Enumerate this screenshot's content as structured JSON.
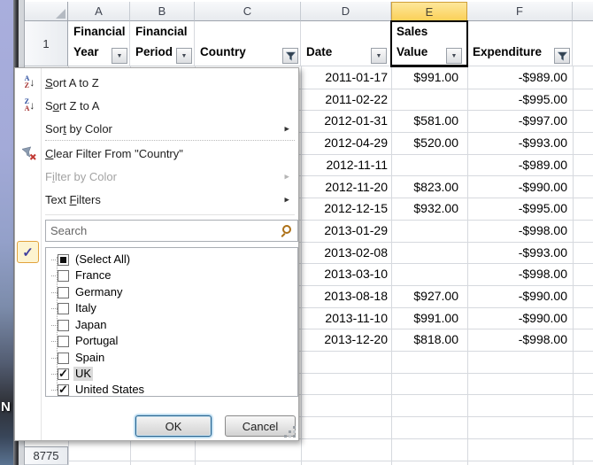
{
  "desktop": {
    "icon_text": "N"
  },
  "sheet": {
    "col_letters": [
      "A",
      "B",
      "C",
      "D",
      "E",
      "F"
    ],
    "selected_column": "E",
    "row1_number": "1",
    "bottom_row_number": "8775",
    "headers": {
      "a1": "Financial",
      "a2": "Year",
      "b1": "Financial",
      "b2": "Period",
      "c": "Country",
      "d": "Date",
      "e1": "Sales",
      "e2": "Value",
      "f": "Expenditure"
    },
    "rows": [
      {
        "date": "2011-01-17",
        "sales": "$991.00",
        "expenditure": "-$989.00"
      },
      {
        "date": "2011-02-22",
        "sales": "",
        "expenditure": "-$995.00"
      },
      {
        "date": "2012-01-31",
        "sales": "$581.00",
        "expenditure": "-$997.00"
      },
      {
        "date": "2012-04-29",
        "sales": "$520.00",
        "expenditure": "-$993.00"
      },
      {
        "date": "2012-11-11",
        "sales": "",
        "expenditure": "-$989.00"
      },
      {
        "date": "2012-11-20",
        "sales": "$823.00",
        "expenditure": "-$990.00"
      },
      {
        "date": "2012-12-15",
        "sales": "$932.00",
        "expenditure": "-$995.00"
      },
      {
        "date": "2013-01-29",
        "sales": "",
        "expenditure": "-$998.00"
      },
      {
        "date": "2013-02-08",
        "sales": "",
        "expenditure": "-$993.00"
      },
      {
        "date": "2013-03-10",
        "sales": "",
        "expenditure": "-$998.00"
      },
      {
        "date": "2013-08-18",
        "sales": "$927.00",
        "expenditure": "-$990.00"
      },
      {
        "date": "2013-11-10",
        "sales": "$991.00",
        "expenditure": "-$990.00"
      },
      {
        "date": "2013-12-20",
        "sales": "$818.00",
        "expenditure": "-$998.00"
      }
    ]
  },
  "menu": {
    "items": [
      {
        "pre": "",
        "key": "S",
        "post": "ort A to Z",
        "enabled": true,
        "submenu": false
      },
      {
        "pre": "S",
        "key": "o",
        "post": "rt Z to A",
        "enabled": true,
        "submenu": false
      },
      {
        "pre": "Sor",
        "key": "t",
        "post": " by Color",
        "enabled": true,
        "submenu": true
      },
      {
        "pre": "",
        "key": "C",
        "post": "lear Filter From \"Country\"",
        "enabled": true,
        "submenu": false
      },
      {
        "pre": "F",
        "key": "i",
        "post": "lter by Color",
        "enabled": false,
        "submenu": true
      },
      {
        "pre": "Text ",
        "key": "F",
        "post": "ilters",
        "enabled": true,
        "submenu": true
      }
    ],
    "icons": {
      "sort_az_top": "A",
      "sort_az_bottom": "Z",
      "sort_za_top": "Z",
      "sort_za_bottom": "A",
      "sort_arrow": "↓",
      "gutter_check": "✓"
    },
    "search": {
      "placeholder": "Search"
    },
    "list": [
      {
        "label": "(Select All)",
        "state": "indeterminate"
      },
      {
        "label": "France",
        "state": "unchecked"
      },
      {
        "label": "Germany",
        "state": "unchecked"
      },
      {
        "label": "Italy",
        "state": "unchecked"
      },
      {
        "label": "Japan",
        "state": "unchecked"
      },
      {
        "label": "Portugal",
        "state": "unchecked"
      },
      {
        "label": "Spain",
        "state": "unchecked"
      },
      {
        "label": "UK",
        "state": "checked",
        "focused": true
      },
      {
        "label": "United States",
        "state": "checked"
      }
    ],
    "buttons": {
      "ok": "OK",
      "cancel": "Cancel"
    }
  },
  "colors": {
    "selected_column_header": "#fbd35e",
    "grid_line": "#d6d9de",
    "sort_letter_blue": "#2b4d9e",
    "sort_letter_red": "#a22c2c",
    "clear_filter_x_red": "#c23a34",
    "funnel_icon": "#31414f",
    "ok_focus_border": "#2c628b",
    "check_gutter_border": "#e2a33d"
  }
}
